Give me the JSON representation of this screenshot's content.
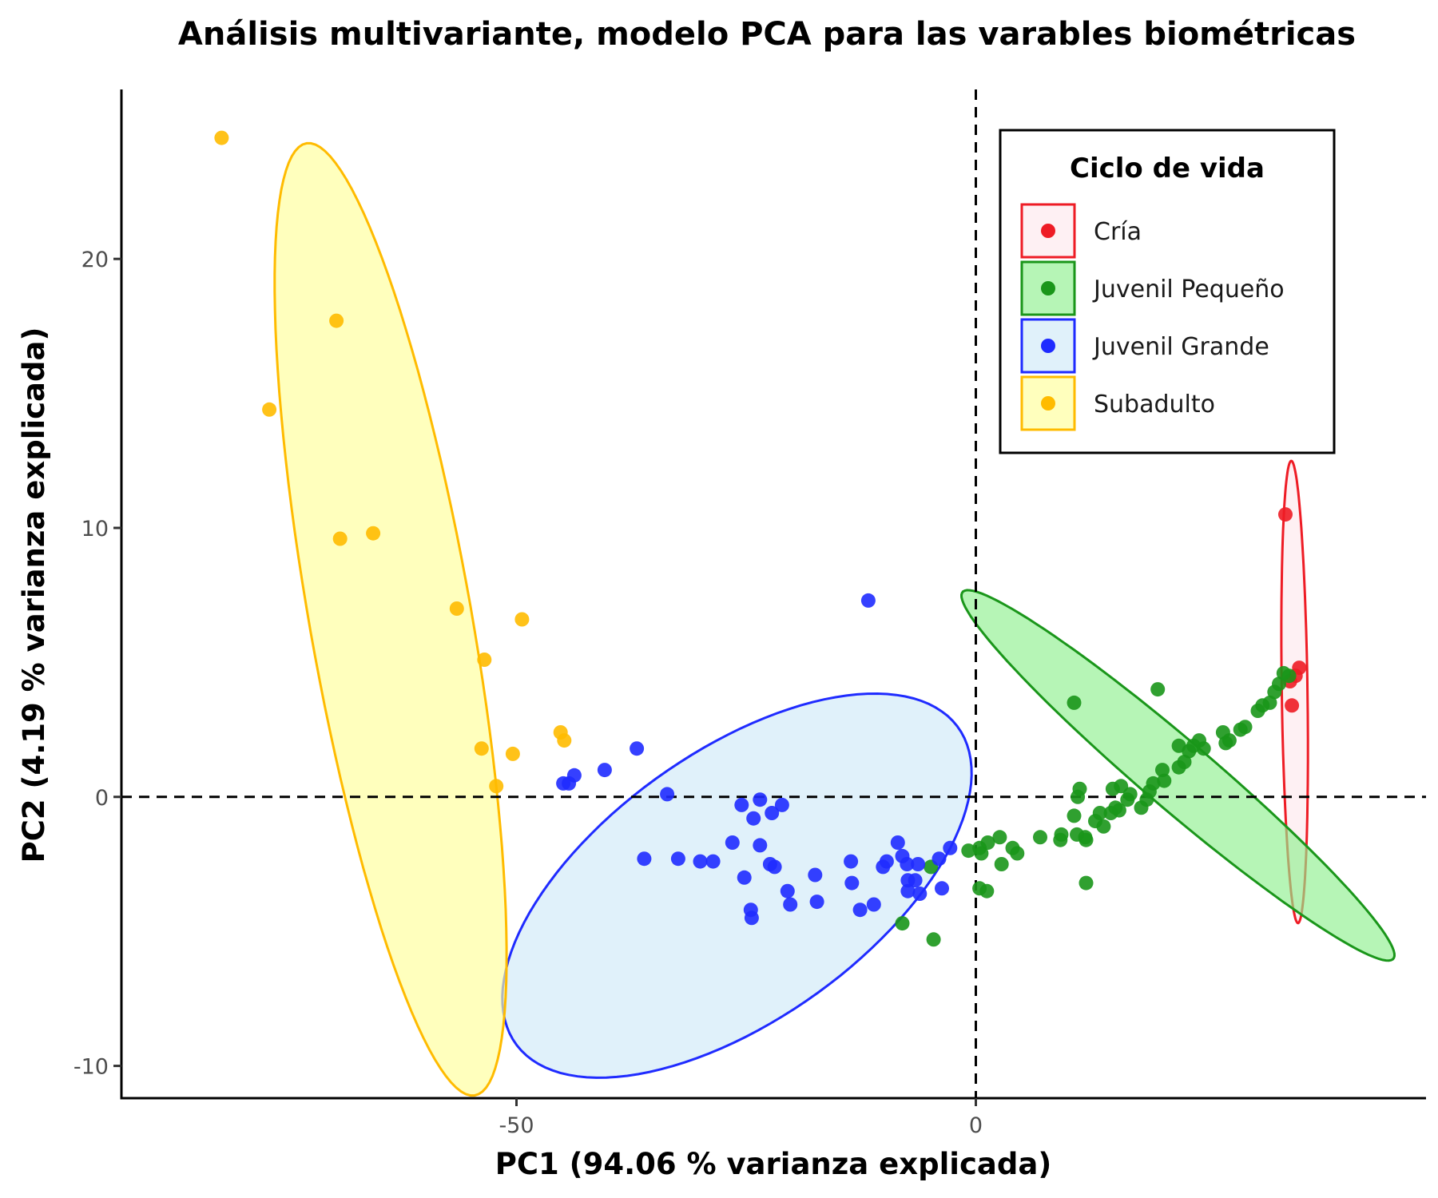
{
  "chart_data": {
    "type": "scatter",
    "title": "Análisis multivariante, modelo PCA para las varables biométricas",
    "xlabel": "PC1 (94.06 % varianza explicada)",
    "ylabel": "PC2 (4.19 % varianza explicada)",
    "xlim": [
      -93,
      49
    ],
    "ylim": [
      -11.2,
      26.3
    ],
    "x_ticks": [
      -50,
      0
    ],
    "y_ticks": [
      -10,
      0,
      10,
      20
    ],
    "x_tick_labels": [
      "-50",
      "0"
    ],
    "y_tick_labels": [
      "-10",
      "0",
      "10",
      "20"
    ],
    "reference_lines": {
      "x": 0,
      "y": 0,
      "style": "dashed"
    },
    "grid": false,
    "legend": {
      "title": "Ciclo de vida",
      "position": "top-right",
      "entries": [
        "Cría",
        "Juvenil Pequeño",
        "Juvenil Grande",
        "Subadulto"
      ]
    },
    "series": [
      {
        "name": "Cría",
        "color": "#ee1c25",
        "ellipse": {
          "cx": 34.7,
          "cy": 3.9,
          "rx": 8.6,
          "ry": 1.4,
          "angle_deg": -87.5
        },
        "points": [
          [
            33.7,
            10.5
          ],
          [
            35.2,
            4.8
          ],
          [
            34.8,
            4.5
          ],
          [
            34.2,
            4.3
          ],
          [
            34.4,
            3.4
          ]
        ]
      },
      {
        "name": "Juvenil Pequeño",
        "color": "#1a961a",
        "ellipse": {
          "cx": 22.0,
          "cy": 0.8,
          "rx": 24.5,
          "ry": 1.6,
          "angle_deg": -15.9
        },
        "points": [
          [
            34.1,
            4.5
          ],
          [
            33.5,
            4.6
          ],
          [
            33.0,
            4.2
          ],
          [
            32.5,
            3.9
          ],
          [
            32.0,
            3.5
          ],
          [
            31.2,
            3.4
          ],
          [
            30.7,
            3.2
          ],
          [
            29.3,
            2.6
          ],
          [
            28.8,
            2.5
          ],
          [
            27.6,
            2.1
          ],
          [
            27.2,
            2.0
          ],
          [
            26.9,
            2.4
          ],
          [
            24.3,
            2.1
          ],
          [
            24.8,
            1.8
          ],
          [
            23.7,
            1.9
          ],
          [
            23.2,
            1.7
          ],
          [
            22.1,
            1.9
          ],
          [
            22.7,
            1.3
          ],
          [
            22.1,
            1.1
          ],
          [
            20.5,
            0.6
          ],
          [
            20.3,
            1.0
          ],
          [
            19.3,
            0.5
          ],
          [
            18.9,
            0.2
          ],
          [
            18.0,
            -0.4
          ],
          [
            18.6,
            -0.1
          ],
          [
            16.5,
            -0.1
          ],
          [
            16.8,
            0.1
          ],
          [
            15.8,
            0.4
          ],
          [
            14.9,
            0.3
          ],
          [
            15.2,
            -0.4
          ],
          [
            15.6,
            -0.5
          ],
          [
            14.7,
            -0.6
          ],
          [
            13.5,
            -0.6
          ],
          [
            13.9,
            -1.1
          ],
          [
            13.0,
            -0.9
          ],
          [
            11.3,
            0.3
          ],
          [
            11.1,
            0.0
          ],
          [
            10.7,
            -0.7
          ],
          [
            11.9,
            -1.5
          ],
          [
            12.0,
            -1.6
          ],
          [
            11.0,
            -1.4
          ],
          [
            9.3,
            -1.4
          ],
          [
            9.2,
            -1.6
          ],
          [
            7.0,
            -1.5
          ],
          [
            2.6,
            -1.5
          ],
          [
            4.0,
            -1.9
          ],
          [
            4.5,
            -2.1
          ],
          [
            1.3,
            -1.7
          ],
          [
            0.4,
            -1.9
          ],
          [
            -0.8,
            -2.0
          ],
          [
            0.6,
            -2.1
          ],
          [
            2.8,
            -2.5
          ],
          [
            -4.9,
            -2.6
          ],
          [
            0.4,
            -3.4
          ],
          [
            1.2,
            -3.5
          ],
          [
            -8.0,
            -4.7
          ],
          [
            -4.6,
            -5.3
          ],
          [
            10.7,
            3.5
          ],
          [
            19.8,
            4.0
          ],
          [
            12.0,
            -3.2
          ]
        ]
      },
      {
        "name": "Juvenil Grande",
        "color": "#1f2bff",
        "ellipse": {
          "cx": -26.0,
          "cy": -3.3,
          "rx": 25.9,
          "ry": 5.7,
          "angle_deg": 9.8
        },
        "points": [
          [
            -11.7,
            7.3
          ],
          [
            -36.9,
            1.8
          ],
          [
            -40.4,
            1.0
          ],
          [
            -43.7,
            0.8
          ],
          [
            -44.3,
            0.5
          ],
          [
            -44.9,
            0.5
          ],
          [
            -33.6,
            0.1
          ],
          [
            -25.5,
            -0.3
          ],
          [
            -23.5,
            -0.1
          ],
          [
            -21.1,
            -0.3
          ],
          [
            -22.2,
            -0.6
          ],
          [
            -24.2,
            -0.8
          ],
          [
            -26.5,
            -1.7
          ],
          [
            -23.5,
            -1.8
          ],
          [
            -9.7,
            -2.4
          ],
          [
            -8.5,
            -1.7
          ],
          [
            -8.0,
            -2.2
          ],
          [
            -2.8,
            -1.9
          ],
          [
            -4.0,
            -2.3
          ],
          [
            -6.3,
            -2.5
          ],
          [
            -7.5,
            -2.5
          ],
          [
            -6.6,
            -3.1
          ],
          [
            -10.1,
            -2.6
          ],
          [
            -13.6,
            -2.4
          ],
          [
            -21.9,
            -2.6
          ],
          [
            -22.4,
            -2.5
          ],
          [
            -17.5,
            -2.9
          ],
          [
            -13.5,
            -3.2
          ],
          [
            -30.0,
            -2.4
          ],
          [
            -28.6,
            -2.4
          ],
          [
            -32.4,
            -2.3
          ],
          [
            -25.2,
            -3.0
          ],
          [
            -20.5,
            -3.5
          ],
          [
            -17.3,
            -3.9
          ],
          [
            -20.2,
            -4.0
          ],
          [
            -24.5,
            -4.2
          ],
          [
            -24.4,
            -4.5
          ],
          [
            -12.6,
            -4.2
          ],
          [
            -11.1,
            -4.0
          ],
          [
            -7.4,
            -3.5
          ],
          [
            -6.1,
            -3.6
          ],
          [
            -3.7,
            -3.4
          ],
          [
            -7.4,
            -3.1
          ],
          [
            -36.1,
            -2.3
          ]
        ]
      },
      {
        "name": "Subadulto",
        "color": "#ffbb00",
        "ellipse": {
          "cx": -63.7,
          "cy": 6.6,
          "rx": 20.3,
          "ry": 7.8,
          "angle_deg": -58.0
        },
        "points": [
          [
            -82.1,
            24.5
          ],
          [
            -69.6,
            17.7
          ],
          [
            -76.9,
            14.4
          ],
          [
            -69.2,
            9.6
          ],
          [
            -65.6,
            9.8
          ],
          [
            -56.5,
            7.0
          ],
          [
            -49.4,
            6.6
          ],
          [
            -53.5,
            5.1
          ],
          [
            -45.2,
            2.4
          ],
          [
            -44.8,
            2.1
          ],
          [
            -53.8,
            1.8
          ],
          [
            -50.4,
            1.6
          ],
          [
            -52.2,
            0.4
          ]
        ]
      }
    ]
  },
  "style": {
    "ellipse_fills": {
      "Cría": "#fde8ec",
      "Juvenil Pequeño": "#8ff08f",
      "Juvenil Grande": "#cfe9f8",
      "Subadulto": "#ffff99"
    }
  }
}
